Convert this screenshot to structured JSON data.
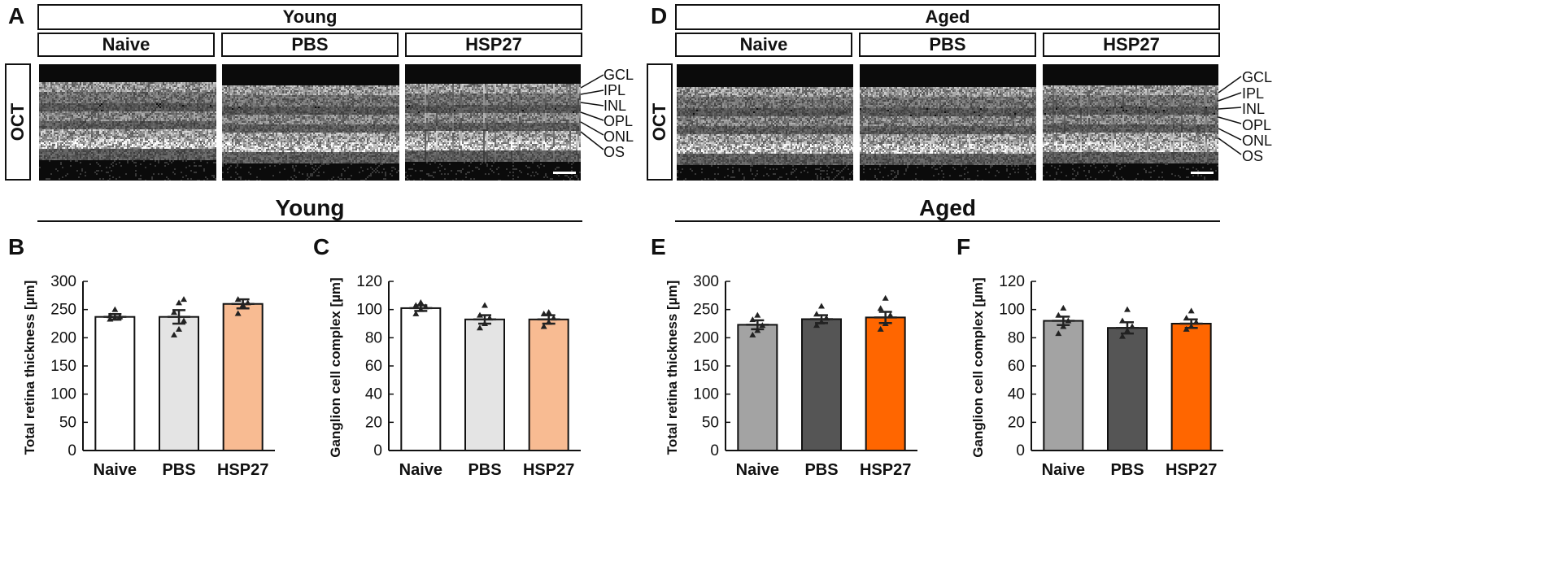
{
  "sections": {
    "young": {
      "panel_letter": "A",
      "header": "Young",
      "groups": [
        "Naive",
        "PBS",
        "HSP27"
      ],
      "modality": "OCT",
      "layers": [
        "GCL",
        "IPL",
        "INL",
        "OPL",
        "ONL",
        "OS"
      ]
    },
    "aged": {
      "panel_letter": "D",
      "header": "Aged",
      "groups": [
        "Naive",
        "PBS",
        "HSP27"
      ],
      "modality": "OCT",
      "layers": [
        "GCL",
        "IPL",
        "INL",
        "OPL",
        "ONL",
        "OS"
      ]
    }
  },
  "section_titles": {
    "young": "Young",
    "aged": "Aged"
  },
  "colors": {
    "young_naive": "#ffffff",
    "young_pbs": "#e4e4e4",
    "young_hsp27": "#f8bb92",
    "aged_naive": "#a3a3a3",
    "aged_pbs": "#555555",
    "aged_hsp27": "#ff6600"
  },
  "chart_data": [
    {
      "panel": "B",
      "type": "bar",
      "ylabel": "Total retina thickness [µm]",
      "categories": [
        "Naive",
        "PBS",
        "HSP27"
      ],
      "values": [
        237,
        237,
        260
      ],
      "errors": [
        5,
        12,
        8
      ],
      "points": [
        [
          233,
          235,
          237,
          239,
          250
        ],
        [
          205,
          215,
          230,
          245,
          262,
          268
        ],
        [
          243,
          258,
          262,
          268
        ]
      ],
      "ylim": [
        0,
        300
      ],
      "yticks": [
        0,
        50,
        100,
        150,
        200,
        250,
        300
      ],
      "colors": [
        "#ffffff",
        "#e4e4e4",
        "#f8bb92"
      ]
    },
    {
      "panel": "C",
      "type": "bar",
      "ylabel": "Ganglion cell complex [µm]",
      "categories": [
        "Naive",
        "PBS",
        "HSP27"
      ],
      "values": [
        101,
        93,
        93
      ],
      "errors": [
        2,
        3,
        3
      ],
      "points": [
        [
          97,
          100,
          102,
          103,
          105
        ],
        [
          87,
          90,
          94,
          96,
          103
        ],
        [
          88,
          91,
          94,
          97,
          98
        ]
      ],
      "ylim": [
        0,
        120
      ],
      "yticks": [
        0,
        20,
        40,
        60,
        80,
        100,
        120
      ],
      "colors": [
        "#ffffff",
        "#e4e4e4",
        "#f8bb92"
      ]
    },
    {
      "panel": "E",
      "type": "bar",
      "ylabel": "Total retina thickness [µm]",
      "categories": [
        "Naive",
        "PBS",
        "HSP27"
      ],
      "values": [
        223,
        233,
        236
      ],
      "errors": [
        8,
        7,
        10
      ],
      "points": [
        [
          205,
          213,
          222,
          232,
          240
        ],
        [
          222,
          228,
          235,
          242,
          256
        ],
        [
          215,
          225,
          240,
          252,
          270
        ]
      ],
      "ylim": [
        0,
        300
      ],
      "yticks": [
        0,
        50,
        100,
        150,
        200,
        250,
        300
      ],
      "colors": [
        "#a3a3a3",
        "#555555",
        "#ff6600"
      ]
    },
    {
      "panel": "F",
      "type": "bar",
      "ylabel": "Ganglion cell complex [µm]",
      "categories": [
        "Naive",
        "PBS",
        "HSP27"
      ],
      "values": [
        92,
        87,
        90
      ],
      "errors": [
        3,
        4,
        3
      ],
      "points": [
        [
          83,
          88,
          92,
          96,
          101
        ],
        [
          81,
          85,
          88,
          92,
          100
        ],
        [
          86,
          88,
          91,
          94,
          99
        ]
      ],
      "ylim": [
        0,
        120
      ],
      "yticks": [
        0,
        20,
        40,
        60,
        80,
        100,
        120
      ],
      "colors": [
        "#a3a3a3",
        "#555555",
        "#ff6600"
      ]
    }
  ]
}
